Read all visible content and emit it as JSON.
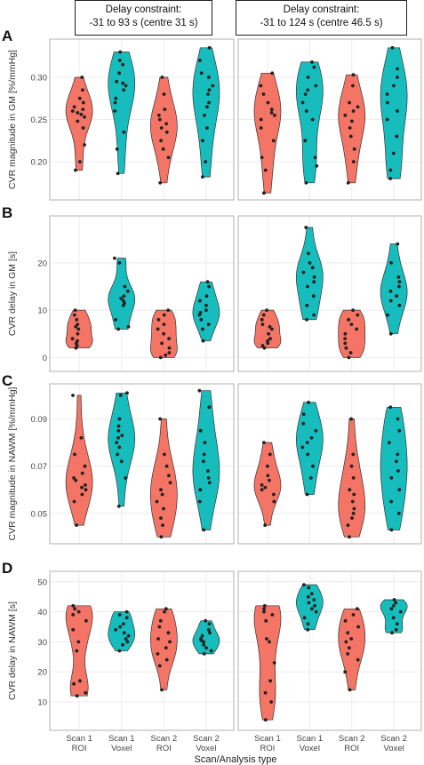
{
  "headers": [
    {
      "line1": "Delay constraint:",
      "line2": "-31 to 93 s (centre 31 s)"
    },
    {
      "line1": "Delay constraint:",
      "line2": "-31 to 124 s (centre 46.5 s)"
    }
  ],
  "colors": {
    "roi": "#f47465",
    "voxel": "#17bdbd",
    "point": "#222222",
    "grid": "#ececec",
    "frame": "#b0b0b0"
  },
  "chart_data": [
    {
      "type": "violin",
      "panel_letter": "A",
      "ylabel": "CVR magnitude in GM [%/mmHg]",
      "ylim": [
        0.16,
        0.34
      ],
      "yticks": [
        0.2,
        0.25,
        0.3
      ],
      "ytick_labels": [
        "0.20",
        "0.25",
        "0.30"
      ],
      "categories": [
        "Scan 1 ROI",
        "Scan 1 Voxel",
        "Scan 2 ROI",
        "Scan 2 Voxel"
      ],
      "facets": [
        {
          "header": "Delay constraint: -31 to 93 s (centre 31 s)",
          "series": [
            {
              "group": "roi",
              "values": [
                0.19,
                0.2,
                0.22,
                0.24,
                0.248,
                0.253,
                0.256,
                0.258,
                0.26,
                0.262,
                0.265,
                0.27,
                0.275,
                0.285,
                0.3
              ]
            },
            {
              "group": "voxel",
              "values": [
                0.186,
                0.215,
                0.235,
                0.26,
                0.27,
                0.275,
                0.285,
                0.29,
                0.293,
                0.295,
                0.305,
                0.315,
                0.32,
                0.33
              ]
            },
            {
              "group": "roi",
              "values": [
                0.175,
                0.205,
                0.215,
                0.225,
                0.235,
                0.24,
                0.245,
                0.25,
                0.255,
                0.262,
                0.28,
                0.3
              ]
            },
            {
              "group": "voxel",
              "values": [
                0.182,
                0.2,
                0.225,
                0.24,
                0.255,
                0.265,
                0.27,
                0.28,
                0.285,
                0.29,
                0.3,
                0.305,
                0.32,
                0.335
              ]
            }
          ]
        },
        {
          "header": "Delay constraint: -31 to 124 s (centre 46.5 s)",
          "series": [
            {
              "group": "roi",
              "values": [
                0.163,
                0.19,
                0.205,
                0.225,
                0.24,
                0.25,
                0.255,
                0.258,
                0.262,
                0.27,
                0.28,
                0.29,
                0.305
              ]
            },
            {
              "group": "voxel",
              "values": [
                0.175,
                0.195,
                0.205,
                0.225,
                0.25,
                0.26,
                0.27,
                0.28,
                0.285,
                0.29,
                0.3,
                0.312,
                0.318
              ]
            },
            {
              "group": "roi",
              "values": [
                0.175,
                0.2,
                0.215,
                0.23,
                0.24,
                0.248,
                0.255,
                0.26,
                0.265,
                0.27,
                0.29,
                0.303
              ]
            },
            {
              "group": "voxel",
              "values": [
                0.18,
                0.19,
                0.21,
                0.23,
                0.25,
                0.26,
                0.27,
                0.28,
                0.29,
                0.3,
                0.31,
                0.335
              ]
            }
          ]
        }
      ]
    },
    {
      "type": "violin",
      "panel_letter": "B",
      "ylabel": "CVR delay in GM [s]",
      "ylim": [
        -2,
        29
      ],
      "yticks": [
        0,
        10,
        20
      ],
      "ytick_labels": [
        "0",
        "10",
        "20"
      ],
      "categories": [
        "Scan 1 ROI",
        "Scan 1 Voxel",
        "Scan 2 ROI",
        "Scan 2 Voxel"
      ],
      "facets": [
        {
          "header": "Delay constraint: -31 to 93 s (centre 31 s)",
          "series": [
            {
              "group": "roi",
              "values": [
                2,
                2.5,
                3,
                3.5,
                4,
                5,
                6,
                6.5,
                7,
                8,
                9,
                10
              ]
            },
            {
              "group": "voxel",
              "values": [
                6,
                6.5,
                8,
                11,
                11.5,
                12,
                12.5,
                13,
                14,
                15,
                20,
                21
              ]
            },
            {
              "group": "roi",
              "values": [
                0,
                0.5,
                1,
                2,
                3,
                4,
                5,
                6,
                7,
                8,
                9,
                10
              ]
            },
            {
              "group": "voxel",
              "values": [
                3.5,
                6,
                7,
                8,
                9,
                9.5,
                10,
                11,
                12,
                13,
                15,
                16
              ]
            }
          ]
        },
        {
          "header": "Delay constraint: -31 to 124 s (centre 46.5 s)",
          "series": [
            {
              "group": "roi",
              "values": [
                2,
                2.5,
                3,
                3.5,
                4,
                5,
                6,
                6.5,
                7,
                8,
                9,
                10
              ]
            },
            {
              "group": "voxel",
              "values": [
                8,
                9,
                11,
                13,
                15,
                16,
                17,
                18,
                19,
                20,
                22,
                27.5
              ]
            },
            {
              "group": "roi",
              "values": [
                0,
                1,
                2,
                3,
                4,
                5,
                6,
                7,
                8,
                9,
                10
              ]
            },
            {
              "group": "voxel",
              "values": [
                5,
                9,
                11,
                12,
                13,
                14,
                15,
                16,
                17,
                20,
                24
              ]
            }
          ]
        }
      ]
    },
    {
      "type": "violin",
      "panel_letter": "C",
      "ylabel": "CVR magnitude in NAWM [%/mmHg]",
      "ylim": [
        0.039,
        0.103
      ],
      "yticks": [
        0.05,
        0.07,
        0.09
      ],
      "ytick_labels": [
        "0.05",
        "0.07",
        "0.09"
      ],
      "categories": [
        "Scan 1 ROI",
        "Scan 1 Voxel",
        "Scan 2 ROI",
        "Scan 2 Voxel"
      ],
      "facets": [
        {
          "header": "Delay constraint: -31 to 93 s (centre 31 s)",
          "series": [
            {
              "group": "roi",
              "values": [
                0.045,
                0.055,
                0.058,
                0.06,
                0.061,
                0.062,
                0.064,
                0.065,
                0.067,
                0.07,
                0.075,
                0.082,
                0.1
              ]
            },
            {
              "group": "voxel",
              "values": [
                0.053,
                0.065,
                0.072,
                0.075,
                0.078,
                0.08,
                0.082,
                0.083,
                0.085,
                0.087,
                0.09,
                0.1,
                0.101
              ]
            },
            {
              "group": "roi",
              "values": [
                0.04,
                0.045,
                0.048,
                0.052,
                0.055,
                0.058,
                0.06,
                0.063,
                0.066,
                0.07,
                0.075,
                0.09
              ]
            },
            {
              "group": "voxel",
              "values": [
                0.043,
                0.055,
                0.06,
                0.063,
                0.065,
                0.068,
                0.072,
                0.075,
                0.08,
                0.085,
                0.095,
                0.102
              ]
            }
          ]
        },
        {
          "header": "Delay constraint: -31 to 124 s (centre 46.5 s)",
          "series": [
            {
              "group": "roi",
              "values": [
                0.045,
                0.055,
                0.058,
                0.06,
                0.061,
                0.062,
                0.064,
                0.066,
                0.07,
                0.075,
                0.08
              ]
            },
            {
              "group": "voxel",
              "values": [
                0.058,
                0.065,
                0.07,
                0.075,
                0.078,
                0.08,
                0.082,
                0.085,
                0.088,
                0.092,
                0.097
              ]
            },
            {
              "group": "roi",
              "values": [
                0.04,
                0.045,
                0.048,
                0.05,
                0.052,
                0.055,
                0.058,
                0.06,
                0.065,
                0.07,
                0.075,
                0.09
              ]
            },
            {
              "group": "voxel",
              "values": [
                0.043,
                0.05,
                0.055,
                0.06,
                0.065,
                0.068,
                0.072,
                0.075,
                0.08,
                0.085,
                0.09,
                0.095
              ]
            }
          ]
        }
      ]
    },
    {
      "type": "violin",
      "panel_letter": "D",
      "ylabel": "CVR delay in NAWM [s]",
      "ylim": [
        2,
        52
      ],
      "yticks": [
        10,
        20,
        30,
        40,
        50
      ],
      "ytick_labels": [
        "10",
        "20",
        "30",
        "40",
        "50"
      ],
      "xlabel": "Scan/Analysis type",
      "x_tick_labels": [
        [
          "Scan 1",
          "ROI"
        ],
        [
          "Scan 1",
          "Voxel"
        ],
        [
          "Scan 2",
          "ROI"
        ],
        [
          "Scan 2",
          "Voxel"
        ]
      ],
      "categories": [
        "Scan 1 ROI",
        "Scan 1 Voxel",
        "Scan 2 ROI",
        "Scan 2 Voxel"
      ],
      "facets": [
        {
          "header": "Delay constraint: -31 to 93 s (centre 31 s)",
          "series": [
            {
              "group": "roi",
              "values": [
                12,
                13,
                16,
                17,
                27,
                30,
                34,
                37,
                39,
                40,
                41,
                42
              ]
            },
            {
              "group": "voxel",
              "values": [
                27,
                29,
                30,
                31,
                32,
                33,
                34,
                35,
                36,
                38,
                39,
                40
              ]
            },
            {
              "group": "roi",
              "values": [
                14,
                22,
                24,
                26,
                28,
                30,
                31,
                33,
                35,
                37,
                40,
                41
              ]
            },
            {
              "group": "voxel",
              "values": [
                26,
                27,
                28,
                29,
                30,
                30.5,
                31,
                32,
                33,
                34,
                36,
                37
              ]
            }
          ]
        },
        {
          "header": "Delay constraint: -31 to 124 s (centre 46.5 s)",
          "series": [
            {
              "group": "roi",
              "values": [
                4,
                10,
                13,
                17,
                23,
                30,
                31,
                37,
                39,
                40,
                41,
                42
              ]
            },
            {
              "group": "voxel",
              "values": [
                34,
                36,
                38,
                40,
                41,
                42,
                43,
                44,
                45,
                46,
                48,
                49
              ]
            },
            {
              "group": "roi",
              "values": [
                14,
                20,
                24,
                26,
                28,
                30,
                31,
                33,
                35,
                37,
                39,
                41
              ]
            },
            {
              "group": "voxel",
              "values": [
                33,
                34,
                36,
                38,
                40,
                41,
                42,
                43,
                44
              ]
            }
          ]
        }
      ]
    }
  ]
}
